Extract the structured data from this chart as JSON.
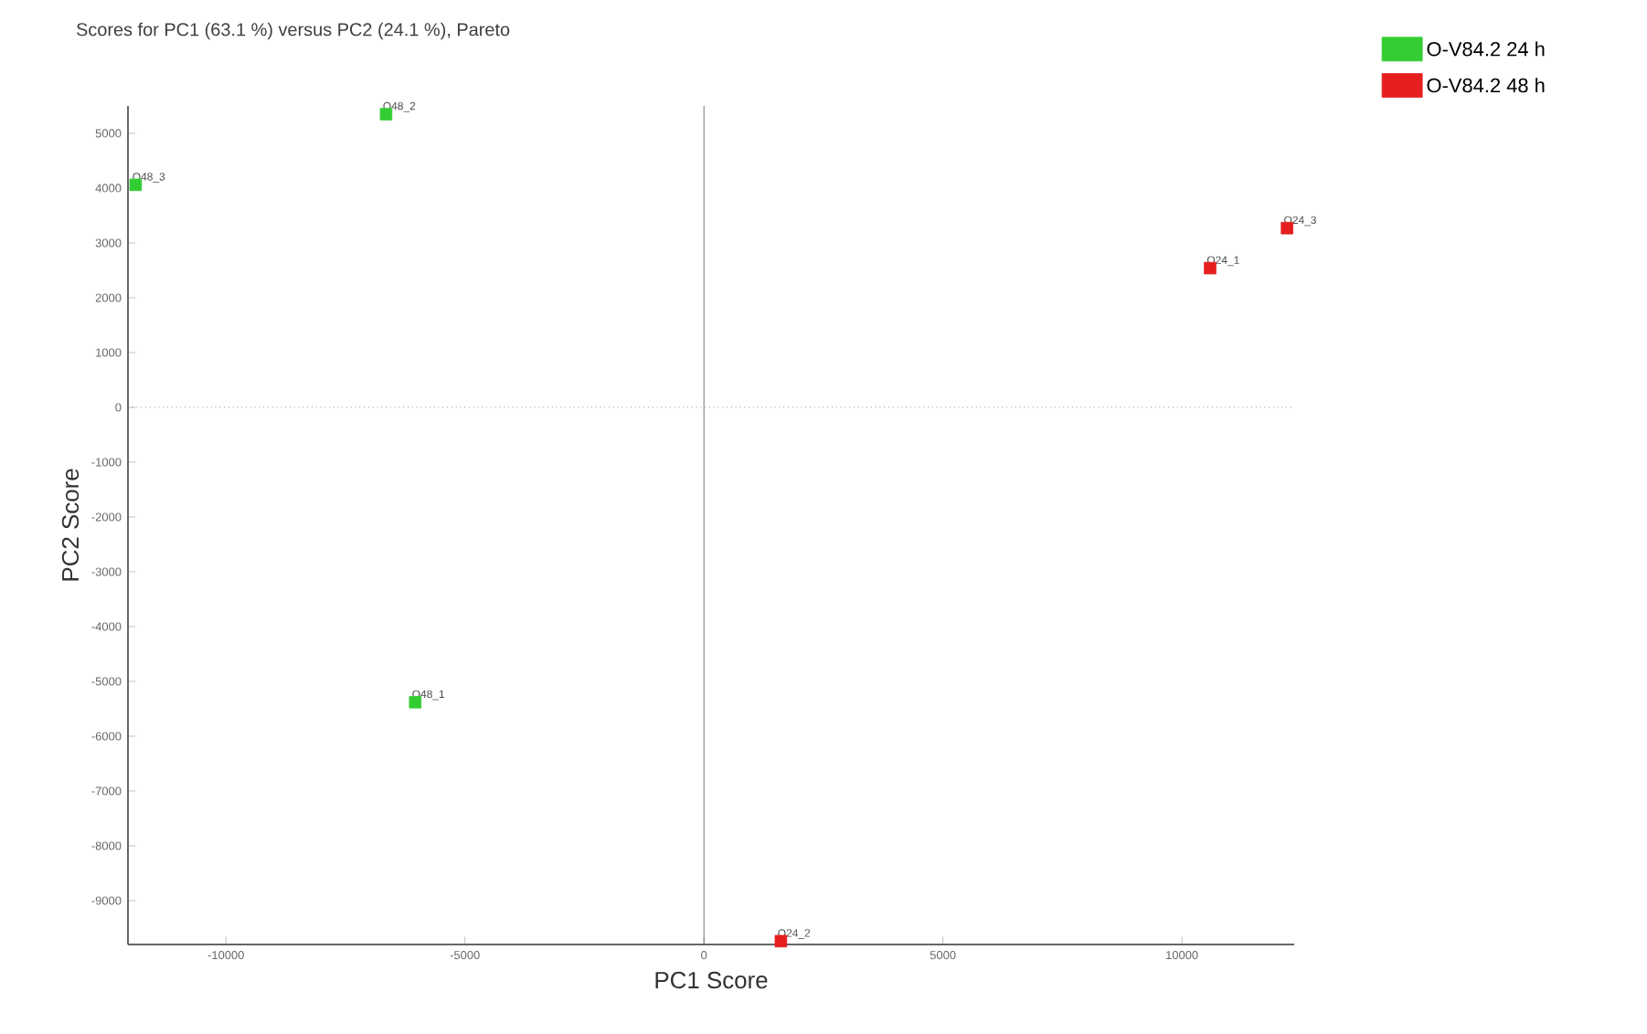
{
  "chart_data": {
    "type": "scatter",
    "title": "Scores for PC1 (63.1 %) versus PC2 (24.1 %), Pareto",
    "xlabel": "PC1 Score",
    "ylabel": "PC2 Score",
    "series": [
      {
        "name": "O-V84.2 24 h",
        "color": "#33cc33",
        "x": [
          -11890,
          -6650,
          -6040
        ],
        "values": [
          4060,
          5350,
          -5380
        ]
      },
      {
        "name": "O-V84.2 48 h",
        "color": "#e51e1e",
        "x": [
          10590,
          1610,
          12200
        ],
        "values": [
          2540,
          -9740,
          3270
        ]
      }
    ],
    "annotations": [
      {
        "text": "O48_3",
        "x": -11890,
        "y": 4060
      },
      {
        "text": "O48_2",
        "x": -6650,
        "y": 5350
      },
      {
        "text": "O48_1",
        "x": -6040,
        "y": -5380
      },
      {
        "text": "O24_1",
        "x": 10590,
        "y": 2540
      },
      {
        "text": "O24_2",
        "x": 1610,
        "y": -9740
      },
      {
        "text": "O24_3",
        "x": 12200,
        "y": 3270
      }
    ],
    "ref_lines": [
      {
        "axis": "x",
        "value": 0,
        "color": "#555555",
        "line_style": "solid"
      },
      {
        "axis": "y",
        "value": 0,
        "color": "#555555",
        "line_style": "dotted"
      }
    ],
    "xlim": [
      -12050,
      12350
    ],
    "ylim": [
      -9800,
      5500
    ],
    "xticks": [
      -10000,
      -5000,
      0,
      5000,
      10000
    ],
    "yticks": [
      -9000,
      -8000,
      -7000,
      -6000,
      -5000,
      -4000,
      -3000,
      -2000,
      -1000,
      0,
      1000,
      2000,
      3000,
      4000,
      5000
    ],
    "marker": "square",
    "legend": "top right",
    "grid": false
  }
}
